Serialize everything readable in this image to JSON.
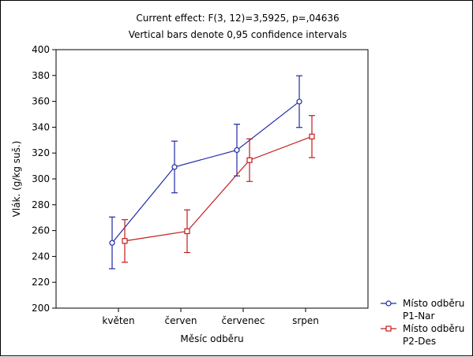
{
  "chart_data": {
    "type": "line",
    "title": "Current effect: F(3, 12)=3,5925, p=,04636",
    "subtitle": "Vertical bars denote 0,95 confidence intervals",
    "xlabel": "Měsíc odběru",
    "ylabel": "Vlák. (g/kg suš.)",
    "categories": [
      "květen",
      "červen",
      "červenec",
      "srpen"
    ],
    "ylim": [
      200,
      400
    ],
    "yticks": [
      "200",
      "220",
      "240",
      "260",
      "280",
      "300",
      "320",
      "340",
      "360",
      "380",
      "400"
    ],
    "grid": false,
    "legend_position": "bottom-right",
    "series": [
      {
        "name": "Místo odběru P1-Nar",
        "legend_line1": "Místo odběru",
        "legend_line2": "P1-Nar",
        "marker": "circle",
        "color": "#1f2aa6",
        "values": [
          250.5,
          309.2,
          322.3,
          359.8
        ],
        "lower": [
          230.5,
          289.2,
          302.3,
          339.8
        ],
        "upper": [
          270.5,
          329.2,
          342.3,
          379.8
        ]
      },
      {
        "name": "Místo odběru P2-Des",
        "legend_line1": "Místo odběru",
        "legend_line2": "P2-Des",
        "marker": "square",
        "color": "#c41c1c",
        "values": [
          252.0,
          259.5,
          314.5,
          332.8
        ],
        "lower": [
          235.5,
          243.0,
          298.0,
          316.5
        ],
        "upper": [
          268.5,
          276.0,
          331.0,
          349.0
        ]
      }
    ]
  }
}
